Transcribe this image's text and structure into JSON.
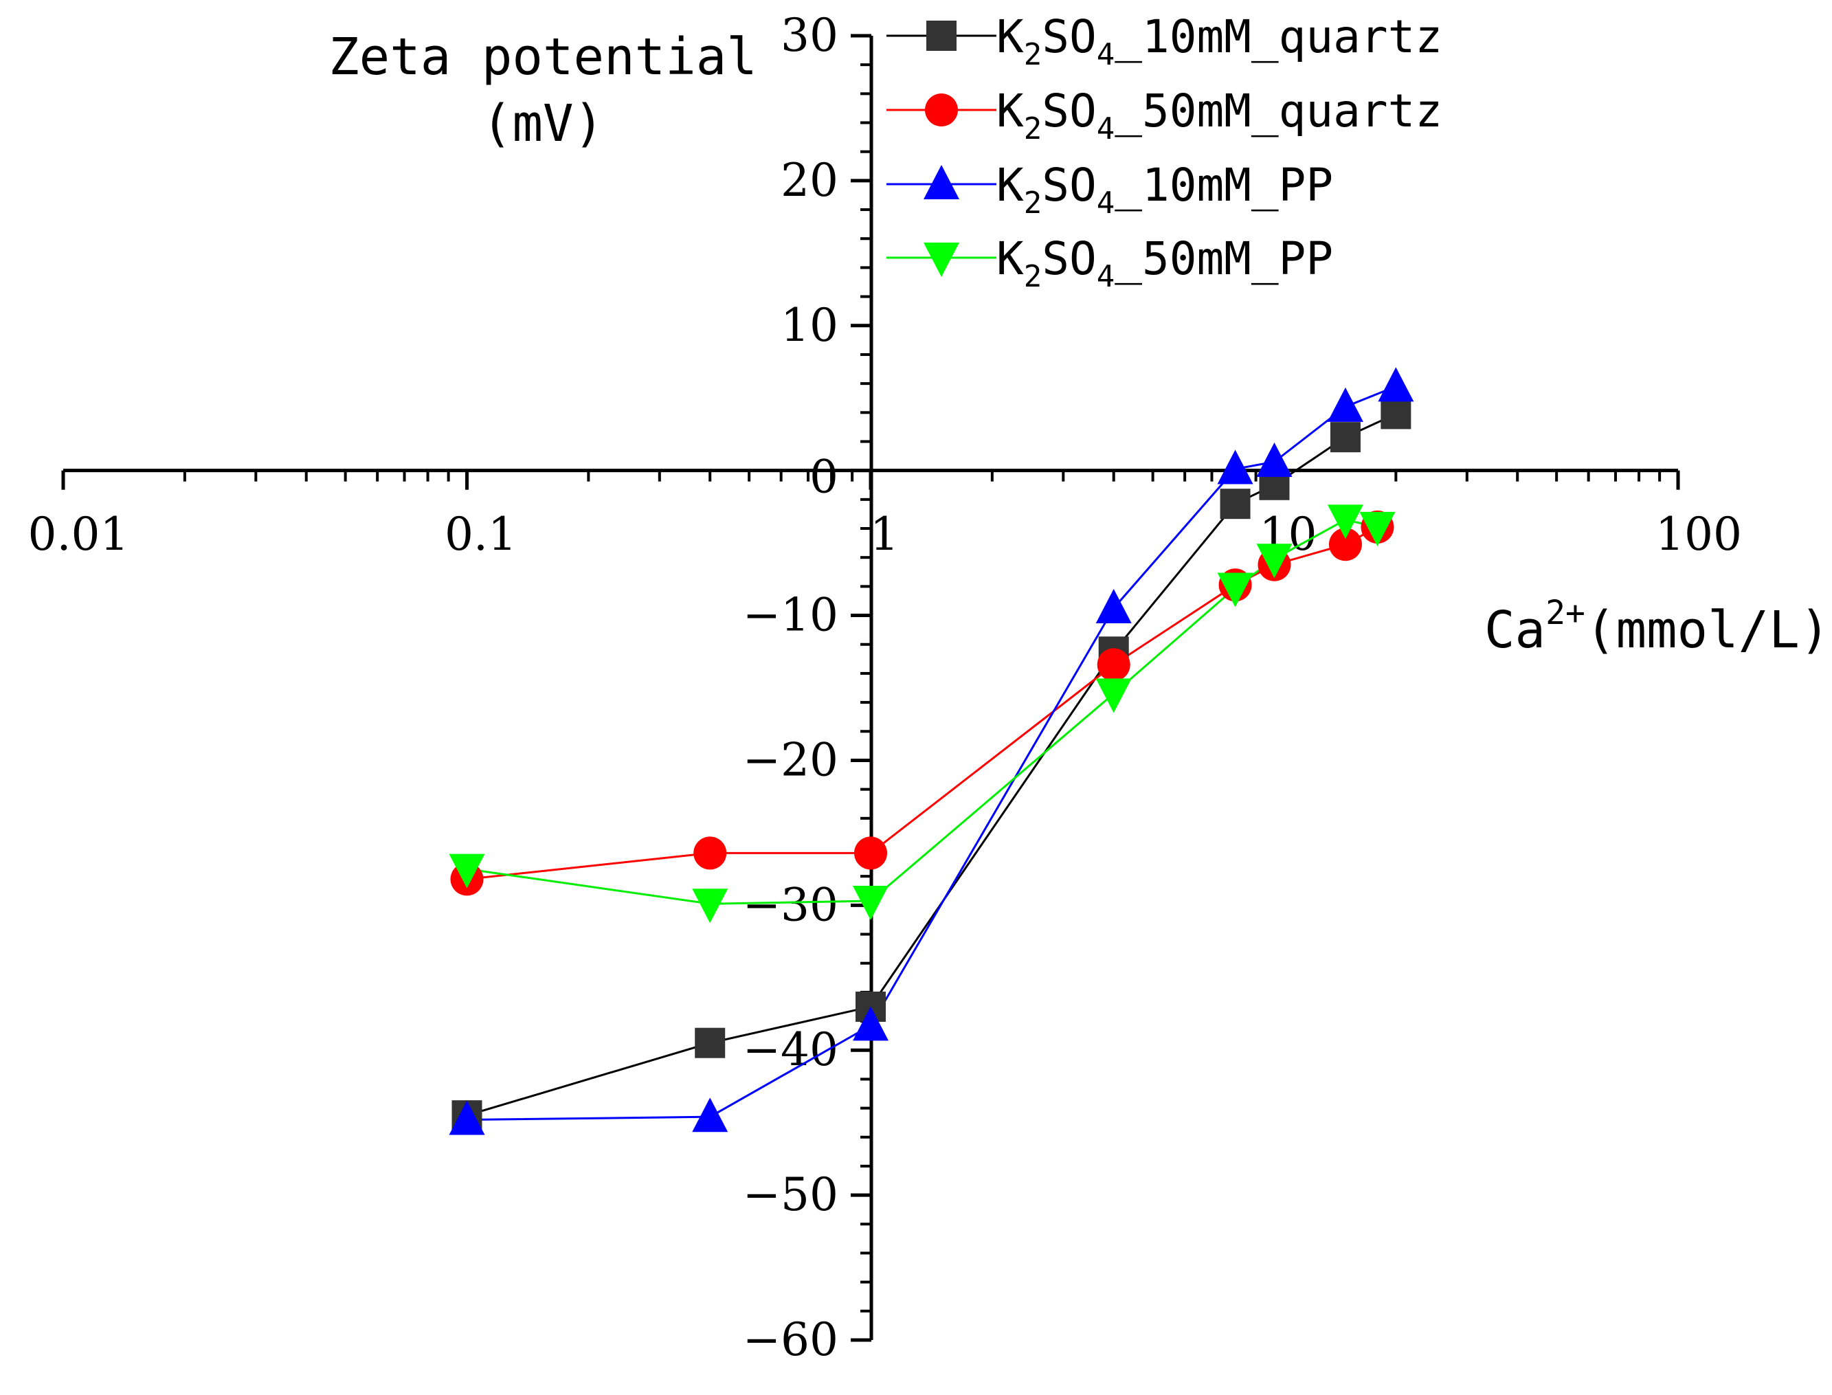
{
  "chart_data": {
    "type": "line",
    "x_scale": "log",
    "xlim": [
      0.01,
      100
    ],
    "ylim": [
      -60,
      30
    ],
    "x_ticks": [
      0.01,
      0.1,
      1,
      10,
      100
    ],
    "x_tick_labels": [
      "0.01",
      "0.1",
      "1",
      "10",
      "100"
    ],
    "y_ticks": [
      30,
      20,
      10,
      0,
      -10,
      -20,
      -30,
      -40,
      -50,
      -60
    ],
    "y_tick_labels": [
      "30",
      "20",
      "10",
      "0",
      "-10",
      "-20",
      "-30",
      "-40",
      "-50",
      "-60"
    ],
    "ylabel_line1": "Zeta potential",
    "ylabel_line2": "(mV)",
    "xlabel_base": "Ca",
    "xlabel_sup": "2+",
    "xlabel_unit": "(mmol/L)",
    "legend_position": "top-right",
    "series": [
      {
        "name": "K2SO4_10mM_quartz",
        "legend_prefix": "K",
        "legend_sub1": "2",
        "legend_mid": "SO",
        "legend_sub2": "4",
        "legend_suffix": "_10mM_quartz",
        "color": "#000000",
        "marker_color": "#333333",
        "marker": "square",
        "x": [
          0.1,
          0.4,
          1,
          4,
          8,
          10,
          15,
          20
        ],
        "y": [
          -44.5,
          -39.5,
          -37,
          -12.5,
          -2.3,
          -1.0,
          2.3,
          3.9
        ]
      },
      {
        "name": "K2SO4_50mM_quartz",
        "legend_prefix": "K",
        "legend_sub1": "2",
        "legend_mid": "SO",
        "legend_sub2": "4",
        "legend_suffix": "_50mM_quartz",
        "color": "#ff0000",
        "marker_color": "#ff0000",
        "marker": "circle",
        "x": [
          0.1,
          0.4,
          1,
          4,
          8,
          10,
          15,
          18
        ],
        "y": [
          -28.2,
          -26.4,
          -26.4,
          -13.4,
          -7.9,
          -6.5,
          -5.1,
          -3.9
        ]
      },
      {
        "name": "K2SO4_10mM_PP",
        "legend_prefix": "K",
        "legend_sub1": "2",
        "legend_mid": "SO",
        "legend_sub2": "4",
        "legend_suffix": "_10mM_PP",
        "color": "#0000ff",
        "marker_color": "#0000ff",
        "marker": "triangle-up",
        "x": [
          0.1,
          0.4,
          1,
          4,
          8,
          10,
          15,
          20
        ],
        "y": [
          -44.8,
          -44.6,
          -38.3,
          -9.5,
          0.1,
          0.6,
          4.4,
          5.8
        ]
      },
      {
        "name": "K2SO4_50mM_PP",
        "legend_prefix": "K",
        "legend_sub1": "2",
        "legend_mid": "SO",
        "legend_sub2": "4",
        "legend_suffix": "_50mM_PP",
        "color": "#00ee00",
        "marker_color": "#00ff00",
        "marker": "triangle-down",
        "x": [
          0.1,
          0.4,
          1,
          4,
          8,
          10,
          15,
          18
        ],
        "y": [
          -27.5,
          -29.9,
          -29.7,
          -15.4,
          -8.1,
          -6.1,
          -3.4,
          -3.9
        ]
      }
    ]
  }
}
